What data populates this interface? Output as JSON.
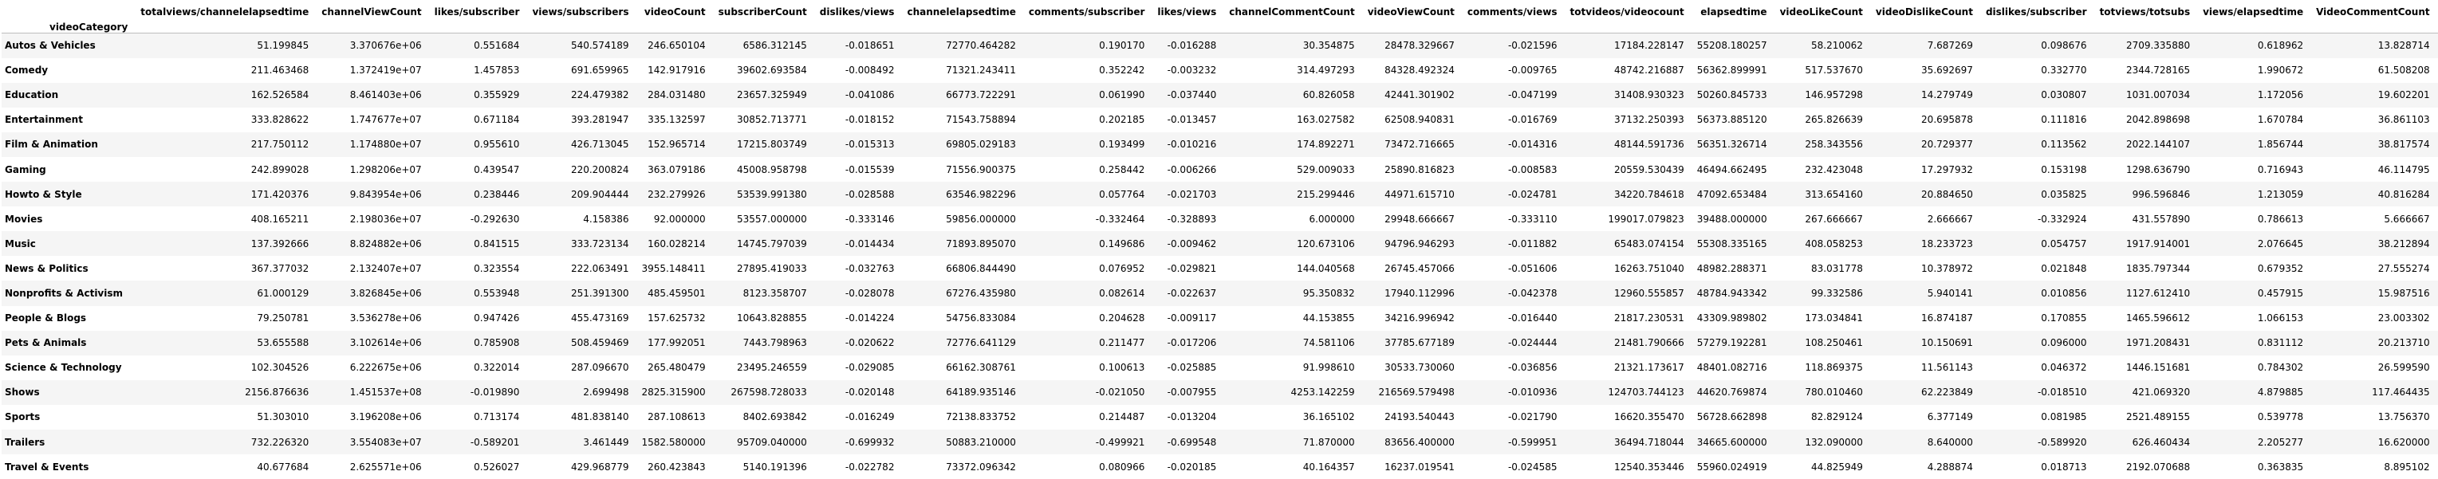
{
  "table": {
    "index_name": "videoCategory",
    "columns": [
      "totalviews/channelelapsedtime",
      "channelViewCount",
      "likes/subscriber",
      "views/subscribers",
      "videoCount",
      "subscriberCount",
      "dislikes/views",
      "channelelapsedtime",
      "comments/subscriber",
      "likes/views",
      "channelCommentCount",
      "videoViewCount",
      "comments/views",
      "totvideos/videocount",
      "elapsedtime",
      "videoLikeCount",
      "videoDislikeCount",
      "dislikes/subscriber",
      "totviews/totsubs",
      "views/elapsedtime",
      "VideoCommentCount"
    ],
    "rows": [
      {
        "category": "Autos & Vehicles",
        "values": [
          "51.199845",
          "3.370676e+06",
          "0.551684",
          "540.574189",
          "246.650104",
          "6586.312145",
          "-0.018651",
          "72770.464282",
          "0.190170",
          "-0.016288",
          "30.354875",
          "28478.329667",
          "-0.021596",
          "17184.228147",
          "55208.180257",
          "58.210062",
          "7.687269",
          "0.098676",
          "2709.335880",
          "0.618962",
          "13.828714"
        ]
      },
      {
        "category": "Comedy",
        "values": [
          "211.463468",
          "1.372419e+07",
          "1.457853",
          "691.659965",
          "142.917916",
          "39602.693584",
          "-0.008492",
          "71321.243411",
          "0.352242",
          "-0.003232",
          "314.497293",
          "84328.492324",
          "-0.009765",
          "48742.216887",
          "56362.899991",
          "517.537670",
          "35.692697",
          "0.332770",
          "2344.728165",
          "1.990672",
          "61.508208"
        ]
      },
      {
        "category": "Education",
        "values": [
          "162.526584",
          "8.461403e+06",
          "0.355929",
          "224.479382",
          "284.031480",
          "23657.325949",
          "-0.041086",
          "66773.722291",
          "0.061990",
          "-0.037440",
          "60.826058",
          "42441.301902",
          "-0.047199",
          "31408.930323",
          "50260.845733",
          "146.957298",
          "14.279749",
          "0.030807",
          "1031.007034",
          "1.172056",
          "19.602201"
        ]
      },
      {
        "category": "Entertainment",
        "values": [
          "333.828622",
          "1.747677e+07",
          "0.671184",
          "393.281947",
          "335.132597",
          "30852.713771",
          "-0.018152",
          "71543.758894",
          "0.202185",
          "-0.013457",
          "163.027582",
          "62508.940831",
          "-0.016769",
          "37132.250393",
          "56373.885120",
          "265.826639",
          "20.695878",
          "0.111816",
          "2042.898698",
          "1.670784",
          "36.861103"
        ]
      },
      {
        "category": "Film & Animation",
        "values": [
          "217.750112",
          "1.174880e+07",
          "0.955610",
          "426.713045",
          "152.965714",
          "17215.803749",
          "-0.015313",
          "69805.029183",
          "0.193499",
          "-0.010216",
          "174.892271",
          "73472.716665",
          "-0.014316",
          "48144.591736",
          "56351.326714",
          "258.343556",
          "20.729377",
          "0.113562",
          "2022.144107",
          "1.856744",
          "38.817574"
        ]
      },
      {
        "category": "Gaming",
        "values": [
          "242.899028",
          "1.298206e+07",
          "0.439547",
          "220.200824",
          "363.079186",
          "45008.958798",
          "-0.015539",
          "71556.900375",
          "0.258442",
          "-0.006266",
          "529.009033",
          "25890.816823",
          "-0.008583",
          "20559.530439",
          "46494.662495",
          "232.423048",
          "17.297932",
          "0.153198",
          "1298.636790",
          "0.716943",
          "46.114795"
        ]
      },
      {
        "category": "Howto & Style",
        "values": [
          "171.420376",
          "9.843954e+06",
          "0.238446",
          "209.904444",
          "232.279926",
          "53539.991380",
          "-0.028588",
          "63546.982296",
          "0.057764",
          "-0.021703",
          "215.299446",
          "44971.615710",
          "-0.024781",
          "34220.784618",
          "47092.653484",
          "313.654160",
          "20.884650",
          "0.035825",
          "996.596846",
          "1.213059",
          "40.816284"
        ]
      },
      {
        "category": "Movies",
        "values": [
          "408.165211",
          "2.198036e+07",
          "-0.292630",
          "4.158386",
          "92.000000",
          "53557.000000",
          "-0.333146",
          "59856.000000",
          "-0.332464",
          "-0.328893",
          "6.000000",
          "29948.666667",
          "-0.333110",
          "199017.079823",
          "39488.000000",
          "267.666667",
          "2.666667",
          "-0.332924",
          "431.557890",
          "0.786613",
          "5.666667"
        ]
      },
      {
        "category": "Music",
        "values": [
          "137.392666",
          "8.824882e+06",
          "0.841515",
          "333.723134",
          "160.028214",
          "14745.797039",
          "-0.014434",
          "71893.895070",
          "0.149686",
          "-0.009462",
          "120.673106",
          "94796.946293",
          "-0.011882",
          "65483.074154",
          "55308.335165",
          "408.058253",
          "18.233723",
          "0.054757",
          "1917.914001",
          "2.076645",
          "38.212894"
        ]
      },
      {
        "category": "News & Politics",
        "values": [
          "367.377032",
          "2.132407e+07",
          "0.323554",
          "222.063491",
          "3955.148411",
          "27895.419033",
          "-0.032763",
          "66806.844490",
          "0.076952",
          "-0.029821",
          "144.040568",
          "26745.457066",
          "-0.051606",
          "16263.751040",
          "48982.288371",
          "83.031778",
          "10.378972",
          "0.021848",
          "1835.797344",
          "0.679352",
          "27.555274"
        ]
      },
      {
        "category": "Nonprofits & Activism",
        "values": [
          "61.000129",
          "3.826845e+06",
          "0.553948",
          "251.391300",
          "485.459501",
          "8123.358707",
          "-0.028078",
          "67276.435980",
          "0.082614",
          "-0.022637",
          "95.350832",
          "17940.112996",
          "-0.042378",
          "12960.555857",
          "48784.943342",
          "99.332586",
          "5.940141",
          "0.010856",
          "1127.612410",
          "0.457915",
          "15.987516"
        ]
      },
      {
        "category": "People & Blogs",
        "values": [
          "79.250781",
          "3.536278e+06",
          "0.947426",
          "455.473169",
          "157.625732",
          "10643.828855",
          "-0.014224",
          "54756.833084",
          "0.204628",
          "-0.009117",
          "44.153855",
          "34216.996942",
          "-0.016440",
          "21817.230531",
          "43309.989802",
          "173.034841",
          "16.874187",
          "0.170855",
          "1465.596612",
          "1.066153",
          "23.003302"
        ]
      },
      {
        "category": "Pets & Animals",
        "values": [
          "53.655588",
          "3.102614e+06",
          "0.785908",
          "508.459469",
          "177.992051",
          "7443.798963",
          "-0.020622",
          "72776.641129",
          "0.211477",
          "-0.017206",
          "74.581106",
          "37785.677189",
          "-0.024444",
          "21481.790666",
          "57279.192281",
          "108.250461",
          "10.150691",
          "0.096000",
          "1971.208431",
          "0.831112",
          "20.213710"
        ]
      },
      {
        "category": "Science & Technology",
        "values": [
          "102.304526",
          "6.222675e+06",
          "0.322014",
          "287.096670",
          "265.480479",
          "23495.246559",
          "-0.029085",
          "66162.308761",
          "0.100613",
          "-0.025885",
          "91.998610",
          "30533.730060",
          "-0.036856",
          "21321.173617",
          "48401.082716",
          "118.869375",
          "11.561143",
          "0.046372",
          "1446.151681",
          "0.784302",
          "26.599590"
        ]
      },
      {
        "category": "Shows",
        "values": [
          "2156.876636",
          "1.451537e+08",
          "-0.019890",
          "2.699498",
          "2825.315900",
          "267598.728033",
          "-0.020148",
          "64189.935146",
          "-0.021050",
          "-0.007955",
          "4253.142259",
          "216569.579498",
          "-0.010936",
          "124703.744123",
          "44620.769874",
          "780.010460",
          "62.223849",
          "-0.018510",
          "421.069320",
          "4.879885",
          "117.464435"
        ]
      },
      {
        "category": "Sports",
        "values": [
          "51.303010",
          "3.196208e+06",
          "0.713174",
          "481.838140",
          "287.108613",
          "8402.693842",
          "-0.016249",
          "72138.833752",
          "0.214487",
          "-0.013204",
          "36.165102",
          "24193.540443",
          "-0.021790",
          "16620.355470",
          "56728.662898",
          "82.829124",
          "6.377149",
          "0.081985",
          "2521.489155",
          "0.539778",
          "13.756370"
        ]
      },
      {
        "category": "Trailers",
        "values": [
          "732.226320",
          "3.554083e+07",
          "-0.589201",
          "3.461449",
          "1582.580000",
          "95709.040000",
          "-0.699932",
          "50883.210000",
          "-0.499921",
          "-0.699548",
          "71.870000",
          "83656.400000",
          "-0.599951",
          "36494.718044",
          "34665.600000",
          "132.090000",
          "8.640000",
          "-0.589920",
          "626.460434",
          "2.205277",
          "16.620000"
        ]
      },
      {
        "category": "Travel & Events",
        "values": [
          "40.677684",
          "2.625571e+06",
          "0.526027",
          "429.968779",
          "260.423843",
          "5140.191396",
          "-0.022782",
          "73372.096342",
          "0.080966",
          "-0.020185",
          "40.164357",
          "16237.019541",
          "-0.024585",
          "12540.353446",
          "55960.024919",
          "44.825949",
          "4.288874",
          "0.018713",
          "2192.070688",
          "0.363835",
          "8.895102"
        ]
      }
    ]
  }
}
